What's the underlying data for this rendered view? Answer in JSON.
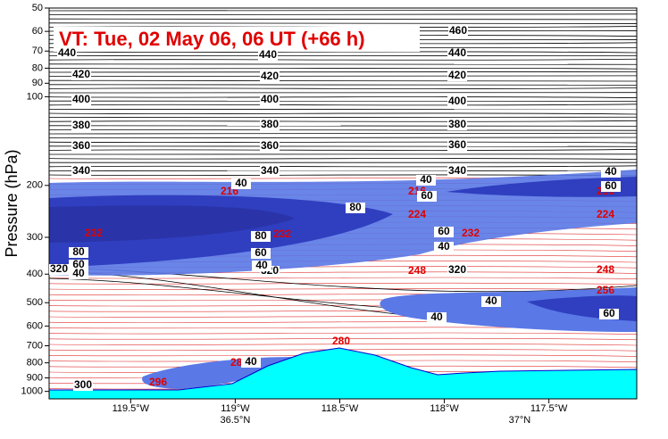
{
  "chart_data": {
    "type": "cross-section",
    "title": "VT:  Tue, 02 May 06, 06 UT (+66 h)",
    "y_label": "Pressure (hPa)",
    "y_log_scale": true,
    "ylim": [
      1060,
      50
    ],
    "yticks": [
      50,
      60,
      70,
      80,
      90,
      100,
      200,
      300,
      400,
      500,
      600,
      700,
      800,
      900,
      1000
    ],
    "xlim": [
      -119.89,
      -117.08
    ],
    "xticks": [
      {
        "value": -119.5,
        "label": "119.5°W"
      },
      {
        "value": -119.0,
        "label": "119°W"
      },
      {
        "value": -118.5,
        "label": "118.5°W"
      },
      {
        "value": -118.0,
        "label": "118°W"
      },
      {
        "value": -117.5,
        "label": "117.5°W"
      }
    ],
    "lat_ticks": [
      {
        "value": -119.0,
        "label": "36.5°N"
      },
      {
        "value": -117.64,
        "label": "37°N"
      }
    ],
    "contour_labels": {
      "theta": [
        440,
        440,
        440,
        460,
        420,
        420,
        420,
        400,
        400,
        400,
        380,
        380,
        380,
        360,
        360,
        360,
        340,
        340,
        340,
        320,
        320,
        320,
        300
      ],
      "temperature": [
        216,
        216,
        216,
        224,
        224,
        232,
        232,
        232,
        248,
        248,
        256,
        280,
        288,
        296
      ],
      "wind_speed": [
        40,
        40,
        40,
        60,
        60,
        80,
        80,
        60,
        40,
        80,
        60,
        40,
        60,
        40,
        40,
        40,
        60,
        40
      ]
    }
  }
}
